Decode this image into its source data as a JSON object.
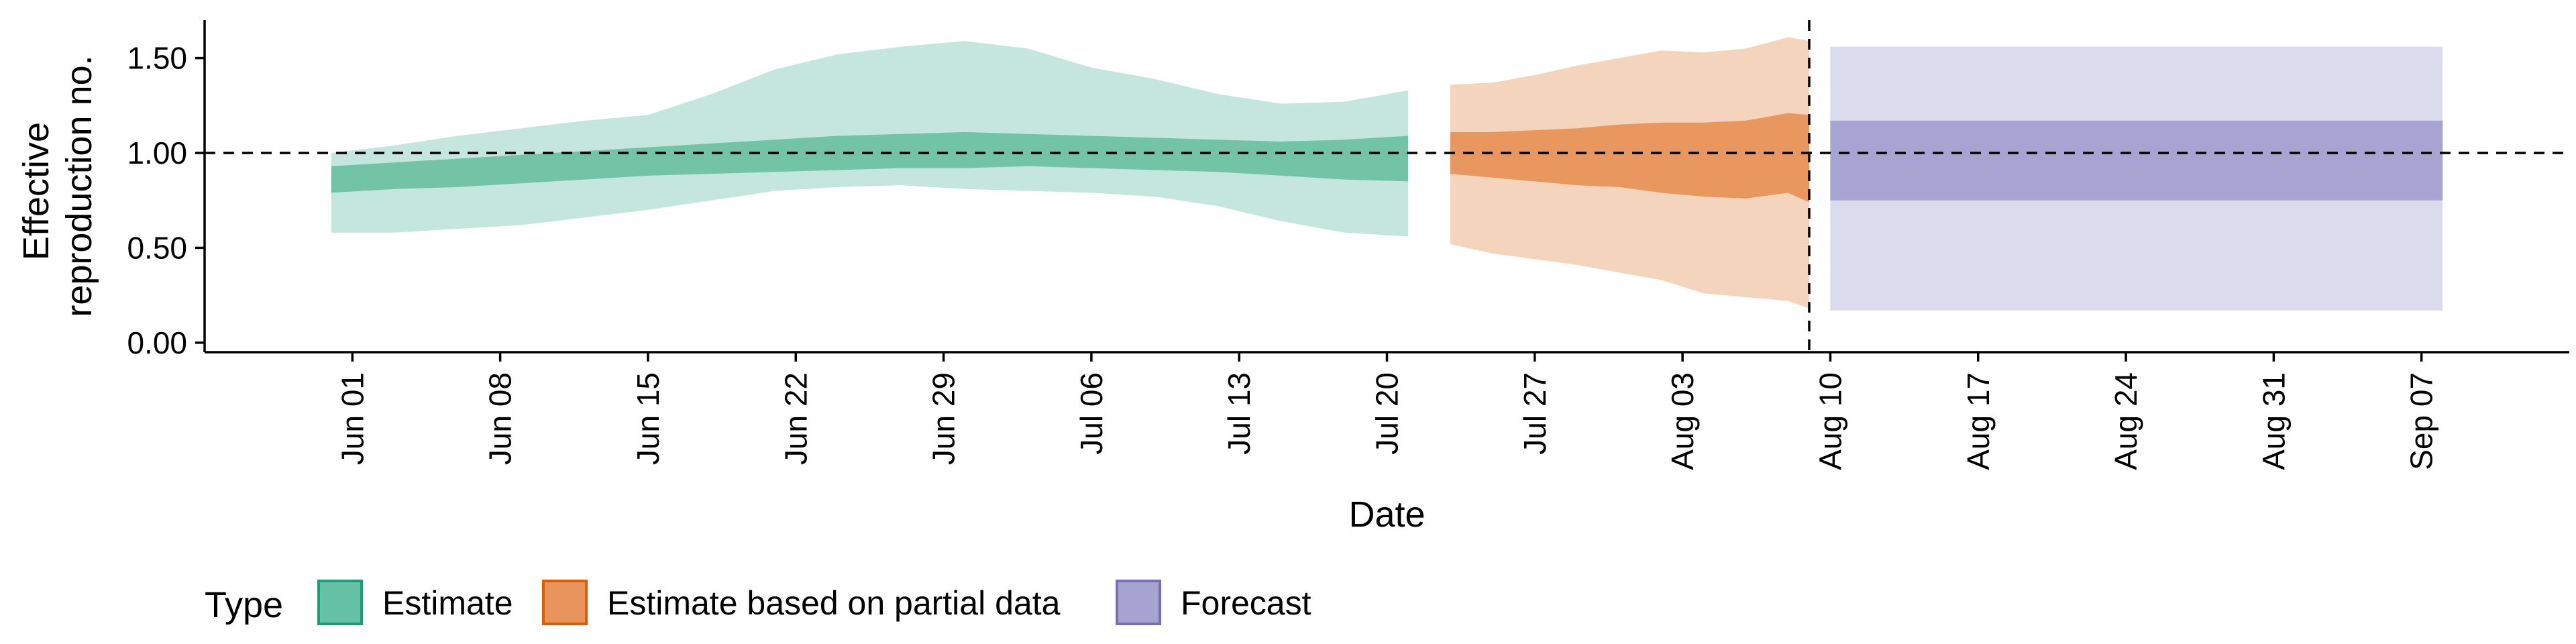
{
  "chart_data": {
    "type": "area",
    "xlabel": "Date",
    "ylabel": "Effective reproduction no.",
    "ylabel_lines": [
      "Effective",
      "reproduction no."
    ],
    "ylim": [
      -0.05,
      1.7
    ],
    "y_ticks": [
      0.0,
      0.5,
      1.0,
      1.5
    ],
    "y_tick_labels": [
      "0.00",
      "0.50",
      "1.00",
      "1.50"
    ],
    "xlim": [
      "2020-05-25",
      "2020-09-14"
    ],
    "x_ticks": [
      "2020-06-01",
      "2020-06-08",
      "2020-06-15",
      "2020-06-22",
      "2020-06-29",
      "2020-07-06",
      "2020-07-13",
      "2020-07-20",
      "2020-07-27",
      "2020-08-03",
      "2020-08-10",
      "2020-08-17",
      "2020-08-24",
      "2020-08-31",
      "2020-09-07"
    ],
    "x_tick_labels": [
      "Jun 01",
      "Jun 08",
      "Jun 15",
      "Jun 22",
      "Jun 29",
      "Jul 06",
      "Jul 13",
      "Jul 20",
      "Jul 27",
      "Aug 03",
      "Aug 10",
      "Aug 17",
      "Aug 24",
      "Aug 31",
      "Sep 07"
    ],
    "reference_line_y": 1.0,
    "vertical_line_x": "2020-08-09",
    "grid": false,
    "legend": {
      "title": "Type",
      "position": "bottom",
      "items": [
        {
          "label": "Estimate",
          "fill": "#66c2a5",
          "border": "#1b9e77"
        },
        {
          "label": "Estimate based on partial data",
          "fill": "#e8955d",
          "border": "#d95f02"
        },
        {
          "label": "Forecast",
          "fill": "#a6a3d0",
          "border": "#7570b3"
        }
      ]
    },
    "series": [
      {
        "name": "Estimate",
        "outer_color": "#c5e6dc",
        "inner_color": "#73c3a7",
        "dates": [
          "2020-05-31",
          "2020-06-03",
          "2020-06-06",
          "2020-06-09",
          "2020-06-12",
          "2020-06-15",
          "2020-06-18",
          "2020-06-21",
          "2020-06-24",
          "2020-06-27",
          "2020-06-30",
          "2020-07-03",
          "2020-07-06",
          "2020-07-09",
          "2020-07-12",
          "2020-07-15",
          "2020-07-18",
          "2020-07-21"
        ],
        "outer_upper": [
          1.0,
          1.04,
          1.09,
          1.13,
          1.17,
          1.2,
          1.31,
          1.44,
          1.52,
          1.56,
          1.59,
          1.55,
          1.45,
          1.39,
          1.31,
          1.26,
          1.27,
          1.33
        ],
        "outer_lower": [
          0.58,
          0.58,
          0.6,
          0.62,
          0.66,
          0.7,
          0.75,
          0.8,
          0.82,
          0.83,
          0.81,
          0.8,
          0.79,
          0.77,
          0.72,
          0.64,
          0.58,
          0.56
        ],
        "inner_upper": [
          0.93,
          0.95,
          0.97,
          0.99,
          1.01,
          1.03,
          1.05,
          1.07,
          1.09,
          1.1,
          1.11,
          1.1,
          1.09,
          1.08,
          1.07,
          1.06,
          1.07,
          1.09
        ],
        "inner_lower": [
          0.79,
          0.81,
          0.82,
          0.84,
          0.86,
          0.88,
          0.89,
          0.9,
          0.91,
          0.92,
          0.92,
          0.93,
          0.92,
          0.91,
          0.9,
          0.88,
          0.86,
          0.85
        ]
      },
      {
        "name": "Estimate based on partial data",
        "outer_color": "#f5d4bd",
        "inner_color": "#e8975f",
        "dates": [
          "2020-07-23",
          "2020-07-25",
          "2020-07-27",
          "2020-07-29",
          "2020-07-31",
          "2020-08-02",
          "2020-08-04",
          "2020-08-06",
          "2020-08-08",
          "2020-08-09"
        ],
        "outer_upper": [
          1.36,
          1.37,
          1.41,
          1.46,
          1.5,
          1.54,
          1.53,
          1.55,
          1.61,
          1.59
        ],
        "outer_lower": [
          0.52,
          0.47,
          0.44,
          0.41,
          0.37,
          0.33,
          0.26,
          0.24,
          0.22,
          0.18
        ],
        "inner_upper": [
          1.11,
          1.11,
          1.12,
          1.13,
          1.15,
          1.16,
          1.16,
          1.17,
          1.21,
          1.2
        ],
        "inner_lower": [
          0.89,
          0.87,
          0.85,
          0.83,
          0.82,
          0.79,
          0.77,
          0.76,
          0.79,
          0.74
        ]
      },
      {
        "name": "Forecast",
        "outer_color": "#dcdbed",
        "inner_color": "#a8a3d1",
        "dates": [
          "2020-08-10",
          "2020-09-08"
        ],
        "outer_upper": [
          1.56,
          1.56
        ],
        "outer_lower": [
          0.17,
          0.17
        ],
        "inner_upper": [
          1.17,
          1.17
        ],
        "inner_lower": [
          0.75,
          0.75
        ]
      }
    ]
  }
}
